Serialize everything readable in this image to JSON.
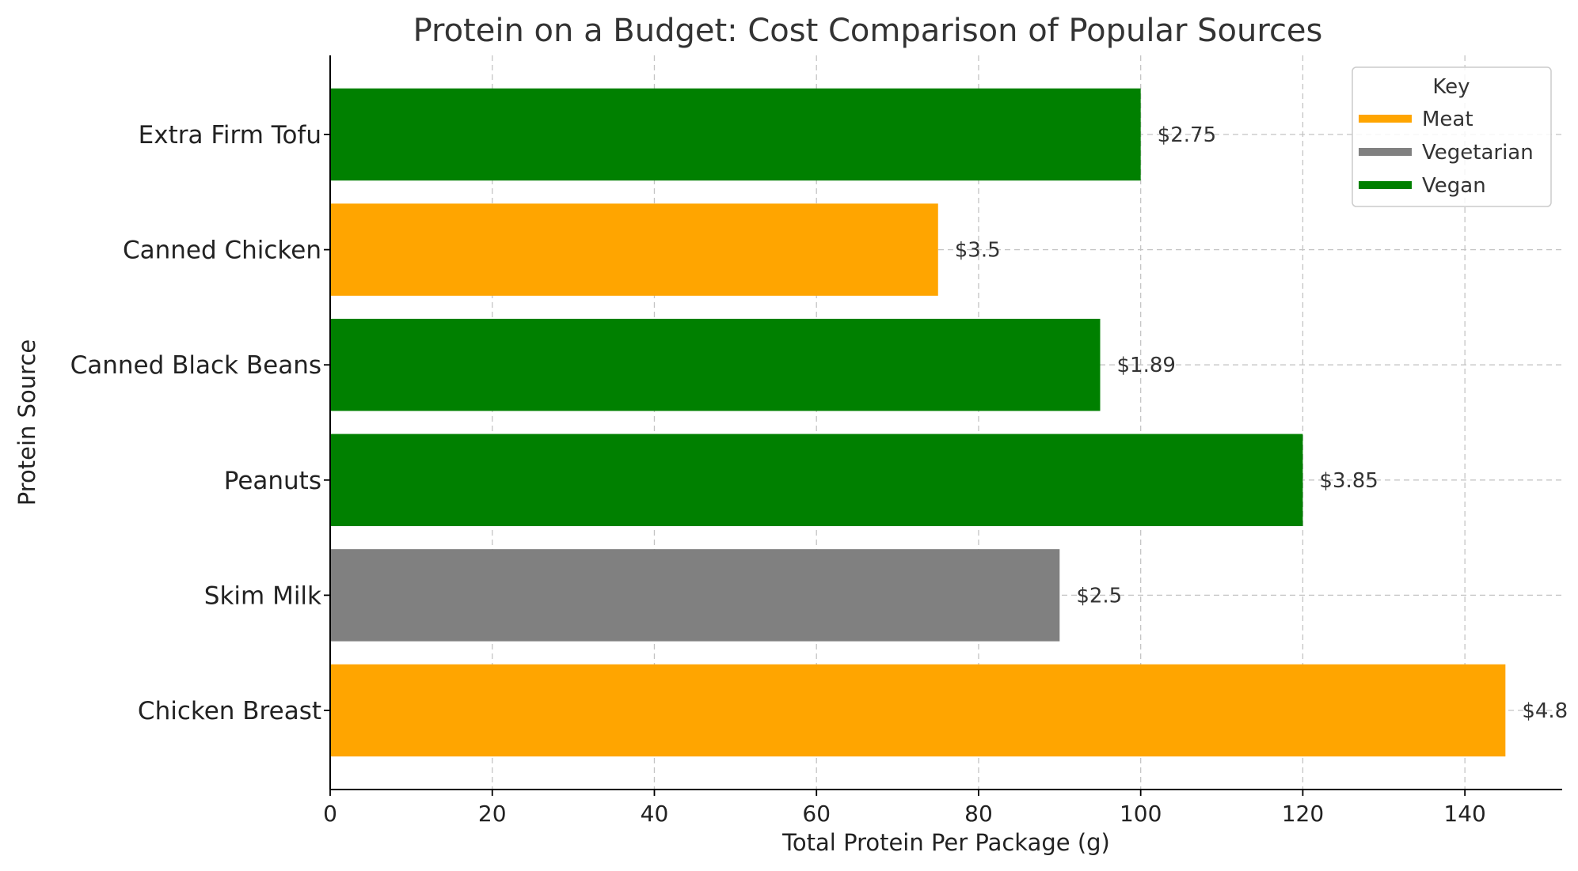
{
  "chart_data": {
    "type": "bar",
    "orientation": "horizontal",
    "title": "Protein on a Budget: Cost Comparison of Popular Sources",
    "xlabel": "Total Protein Per Package (g)",
    "ylabel": "Protein Source",
    "xlim": [
      0,
      152
    ],
    "xticks": [
      0,
      20,
      40,
      60,
      80,
      100,
      120,
      140
    ],
    "grid": true,
    "legend": {
      "title": "Key",
      "placement": "top-right",
      "entries": [
        {
          "label": "Meat",
          "color": "#FFA500"
        },
        {
          "label": "Vegetarian",
          "color": "#808080"
        },
        {
          "label": "Vegan",
          "color": "#008000"
        }
      ]
    },
    "bars": [
      {
        "category": "Extra Firm Tofu",
        "value": 100,
        "price": "$2.75",
        "group": "Vegan"
      },
      {
        "category": "Canned Chicken",
        "value": 75,
        "price": "$3.5",
        "group": "Meat"
      },
      {
        "category": "Canned Black Beans",
        "value": 95,
        "price": "$1.89",
        "group": "Vegan"
      },
      {
        "category": "Peanuts",
        "value": 120,
        "price": "$3.85",
        "group": "Vegan"
      },
      {
        "category": "Skim Milk",
        "value": 90,
        "price": "$2.5",
        "group": "Vegetarian"
      },
      {
        "category": "Chicken Breast",
        "value": 145,
        "price": "$4.8",
        "group": "Meat"
      }
    ]
  }
}
